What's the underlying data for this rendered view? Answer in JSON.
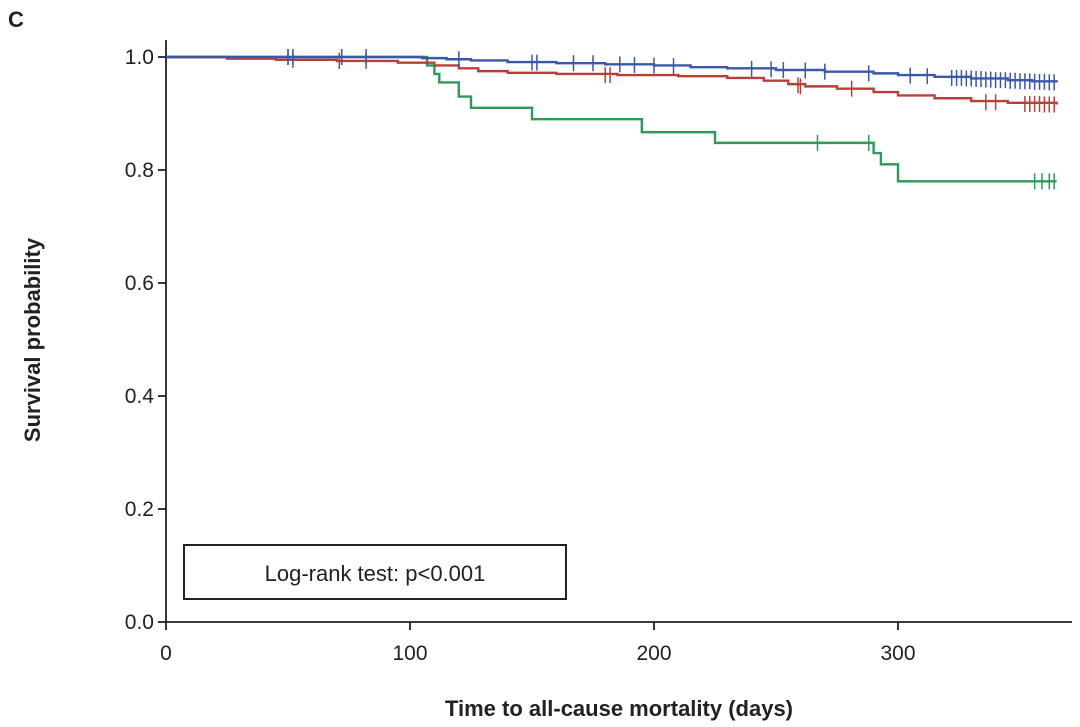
{
  "chart_data": {
    "type": "line",
    "panel_label": "C",
    "title": "",
    "xlabel": "Time to all-cause mortality (days)",
    "ylabel": "Survival probability",
    "xlim": [
      0,
      370
    ],
    "ylim": [
      0,
      1.0
    ],
    "x_ticks": [
      0,
      100,
      200,
      300
    ],
    "x_tick_labels": [
      "0",
      "100",
      "200",
      "300"
    ],
    "y_ticks": [
      0.0,
      0.2,
      0.4,
      0.6,
      0.8,
      1.0
    ],
    "y_tick_labels": [
      "0.0",
      "0.2",
      "0.4",
      "0.6",
      "0.8",
      "1.0"
    ],
    "grid": false,
    "legend": "none",
    "annotation": "Log-rank test: p<0.001",
    "series": [
      {
        "color": "#3a58a8",
        "steps": [
          [
            0,
            1.0
          ],
          [
            105,
            0.998
          ],
          [
            115,
            0.996
          ],
          [
            125,
            0.994
          ],
          [
            140,
            0.991
          ],
          [
            160,
            0.989
          ],
          [
            180,
            0.987
          ],
          [
            200,
            0.985
          ],
          [
            215,
            0.982
          ],
          [
            230,
            0.98
          ],
          [
            250,
            0.977
          ],
          [
            270,
            0.974
          ],
          [
            290,
            0.971
          ],
          [
            300,
            0.968
          ],
          [
            315,
            0.965
          ],
          [
            330,
            0.962
          ],
          [
            345,
            0.959
          ],
          [
            355,
            0.957
          ],
          [
            365,
            0.955
          ]
        ],
        "censored": [
          [
            50,
            1.0
          ],
          [
            52,
            1.0
          ],
          [
            72,
            1.0
          ],
          [
            82,
            1.0
          ],
          [
            120,
            0.996
          ],
          [
            150,
            0.99
          ],
          [
            152,
            0.99
          ],
          [
            167,
            0.989
          ],
          [
            175,
            0.989
          ],
          [
            186,
            0.987
          ],
          [
            192,
            0.986
          ],
          [
            200,
            0.985
          ],
          [
            208,
            0.984
          ],
          [
            240,
            0.979
          ],
          [
            248,
            0.978
          ],
          [
            253,
            0.977
          ],
          [
            262,
            0.976
          ],
          [
            270,
            0.974
          ],
          [
            288,
            0.971
          ],
          [
            305,
            0.967
          ],
          [
            312,
            0.966
          ],
          [
            322,
            0.963
          ],
          [
            324,
            0.963
          ],
          [
            326,
            0.963
          ],
          [
            328,
            0.962
          ],
          [
            330,
            0.962
          ],
          [
            332,
            0.961
          ],
          [
            334,
            0.961
          ],
          [
            336,
            0.96
          ],
          [
            338,
            0.96
          ],
          [
            340,
            0.959
          ],
          [
            342,
            0.959
          ],
          [
            344,
            0.959
          ],
          [
            346,
            0.958
          ],
          [
            348,
            0.958
          ],
          [
            350,
            0.957
          ],
          [
            352,
            0.957
          ],
          [
            354,
            0.957
          ],
          [
            356,
            0.956
          ],
          [
            358,
            0.956
          ],
          [
            360,
            0.956
          ],
          [
            362,
            0.955
          ],
          [
            364,
            0.955
          ]
        ]
      },
      {
        "color": "#b5403a",
        "steps": [
          [
            0,
            1.0
          ],
          [
            25,
            0.997
          ],
          [
            45,
            0.995
          ],
          [
            70,
            0.993
          ],
          [
            95,
            0.99
          ],
          [
            110,
            0.985
          ],
          [
            120,
            0.98
          ],
          [
            128,
            0.975
          ],
          [
            140,
            0.972
          ],
          [
            160,
            0.97
          ],
          [
            185,
            0.968
          ],
          [
            210,
            0.966
          ],
          [
            230,
            0.963
          ],
          [
            245,
            0.958
          ],
          [
            255,
            0.952
          ],
          [
            262,
            0.948
          ],
          [
            275,
            0.944
          ],
          [
            290,
            0.938
          ],
          [
            300,
            0.932
          ],
          [
            315,
            0.927
          ],
          [
            330,
            0.922
          ],
          [
            345,
            0.919
          ],
          [
            365,
            0.916
          ]
        ],
        "censored": [
          [
            52,
            0.995
          ],
          [
            71,
            0.993
          ],
          [
            82,
            0.993
          ],
          [
            180,
            0.968
          ],
          [
            182,
            0.968
          ],
          [
            259,
            0.95
          ],
          [
            260,
            0.948
          ],
          [
            281,
            0.944
          ],
          [
            336,
            0.92
          ],
          [
            340,
            0.92
          ],
          [
            352,
            0.917
          ],
          [
            354,
            0.917
          ],
          [
            356,
            0.917
          ],
          [
            358,
            0.917
          ],
          [
            360,
            0.916
          ],
          [
            362,
            0.916
          ],
          [
            364,
            0.916
          ]
        ]
      },
      {
        "color": "#2e9a5a",
        "steps": [
          [
            0,
            1.0
          ],
          [
            107,
            0.985
          ],
          [
            110,
            0.97
          ],
          [
            112,
            0.955
          ],
          [
            120,
            0.93
          ],
          [
            125,
            0.91
          ],
          [
            150,
            0.89
          ],
          [
            195,
            0.867
          ],
          [
            225,
            0.848
          ],
          [
            290,
            0.83
          ],
          [
            293,
            0.81
          ],
          [
            300,
            0.78
          ],
          [
            365,
            0.78
          ]
        ],
        "censored": [
          [
            50,
            1.0
          ],
          [
            72,
            1.0
          ],
          [
            267,
            0.848
          ],
          [
            288,
            0.848
          ],
          [
            356,
            0.78
          ],
          [
            359,
            0.78
          ],
          [
            362,
            0.78
          ],
          [
            364,
            0.78
          ]
        ]
      }
    ]
  }
}
